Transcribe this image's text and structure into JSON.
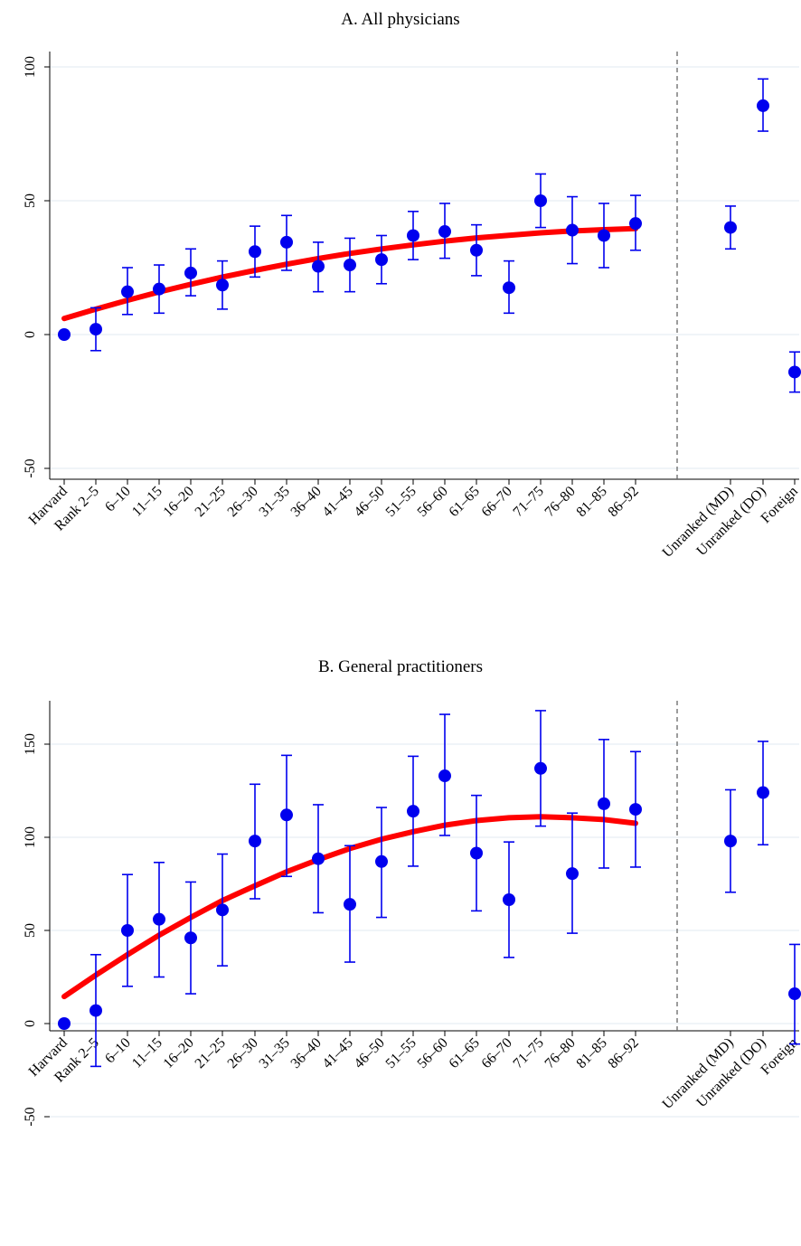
{
  "chart_data": [
    {
      "type": "scatter",
      "title": "A. All physicians",
      "categories": [
        "Harvard",
        "Rank 2–5",
        "6–10",
        "11–15",
        "16–20",
        "21–25",
        "26–30",
        "31–35",
        "36–40",
        "41–45",
        "46–50",
        "51–55",
        "56–60",
        "61–65",
        "66–70",
        "71–75",
        "76–80",
        "81–85",
        "86–92",
        "Unranked (MD)",
        "Unranked (DO)",
        "Foreign"
      ],
      "yticks": [
        -50,
        0,
        50,
        100
      ],
      "ylim": [
        -53,
        103
      ],
      "grid": true,
      "series": [
        {
          "kind": "point-with-ci",
          "values": [
            0,
            2,
            16,
            17,
            23,
            18.5,
            31,
            34.5,
            25.5,
            26,
            28,
            37,
            38.5,
            31.5,
            17.5,
            50,
            39,
            37,
            41.5,
            40,
            85.5,
            -14
          ],
          "ci_low": [
            0,
            -6,
            7.5,
            8,
            14.5,
            9.5,
            21.5,
            24,
            16,
            16,
            19,
            28,
            28.5,
            22,
            8,
            40,
            26.5,
            25,
            31.5,
            32,
            76,
            -21.5
          ],
          "ci_high": [
            0,
            10,
            25,
            26,
            32,
            27.5,
            40.5,
            44.5,
            34.5,
            36,
            37,
            46,
            49,
            41,
            27.5,
            60,
            51.5,
            49,
            52,
            48,
            95.5,
            -6.5
          ]
        },
        {
          "kind": "quadratic-fit",
          "x": [
            0,
            1,
            2,
            3,
            4,
            5,
            6,
            7,
            8,
            9,
            10,
            11,
            12,
            13,
            14,
            15,
            16,
            17,
            18
          ],
          "values": [
            6,
            9.5,
            12.8,
            15.9,
            18.8,
            21.5,
            24,
            26.3,
            28.4,
            30.3,
            32,
            33.5,
            34.9,
            36.1,
            37.1,
            38,
            38.7,
            39.2,
            39.6
          ]
        }
      ]
    },
    {
      "type": "scatter",
      "title": "B. General practitioners",
      "categories": [
        "Harvard",
        "Rank 2–5",
        "6–10",
        "11–15",
        "16–20",
        "21–25",
        "26–30",
        "31–35",
        "36–40",
        "41–45",
        "46–50",
        "51–55",
        "56–60",
        "61–65",
        "66–70",
        "71–75",
        "76–80",
        "81–85",
        "86–92",
        "Unranked (MD)",
        "Unranked (DO)",
        "Foreign"
      ],
      "yticks": [
        -50,
        0,
        50,
        100,
        150
      ],
      "ylim": [
        -53,
        176
      ],
      "grid": true,
      "series": [
        {
          "kind": "point-with-ci",
          "values": [
            0,
            7,
            50,
            56,
            46,
            61,
            98,
            112,
            88.5,
            64,
            87,
            114,
            133,
            91.5,
            66.5,
            137,
            80.5,
            118,
            115,
            98,
            124,
            16
          ],
          "ci_low": [
            0,
            -23,
            20,
            25,
            16,
            31,
            67,
            79,
            59.5,
            33,
            57,
            84.5,
            101,
            60.5,
            35.5,
            106,
            48.5,
            83.5,
            84,
            70.5,
            96,
            -11
          ],
          "ci_high": [
            0,
            37,
            80,
            86.5,
            76,
            91,
            128.5,
            144,
            117.5,
            95.5,
            116,
            143.5,
            166,
            122.5,
            97.5,
            168,
            113,
            152.5,
            146,
            125.5,
            151.5,
            42.5
          ]
        },
        {
          "kind": "quadratic-fit",
          "x": [
            0,
            1,
            2,
            3,
            4,
            5,
            6,
            7,
            8,
            9,
            10,
            11,
            12,
            13,
            14,
            15,
            16,
            17,
            18
          ],
          "values": [
            14.5,
            26,
            37,
            47.5,
            57,
            66,
            74,
            81.5,
            88,
            94,
            99,
            103,
            106.5,
            109,
            110.5,
            111,
            110.5,
            109.5,
            107.5
          ]
        }
      ]
    }
  ]
}
